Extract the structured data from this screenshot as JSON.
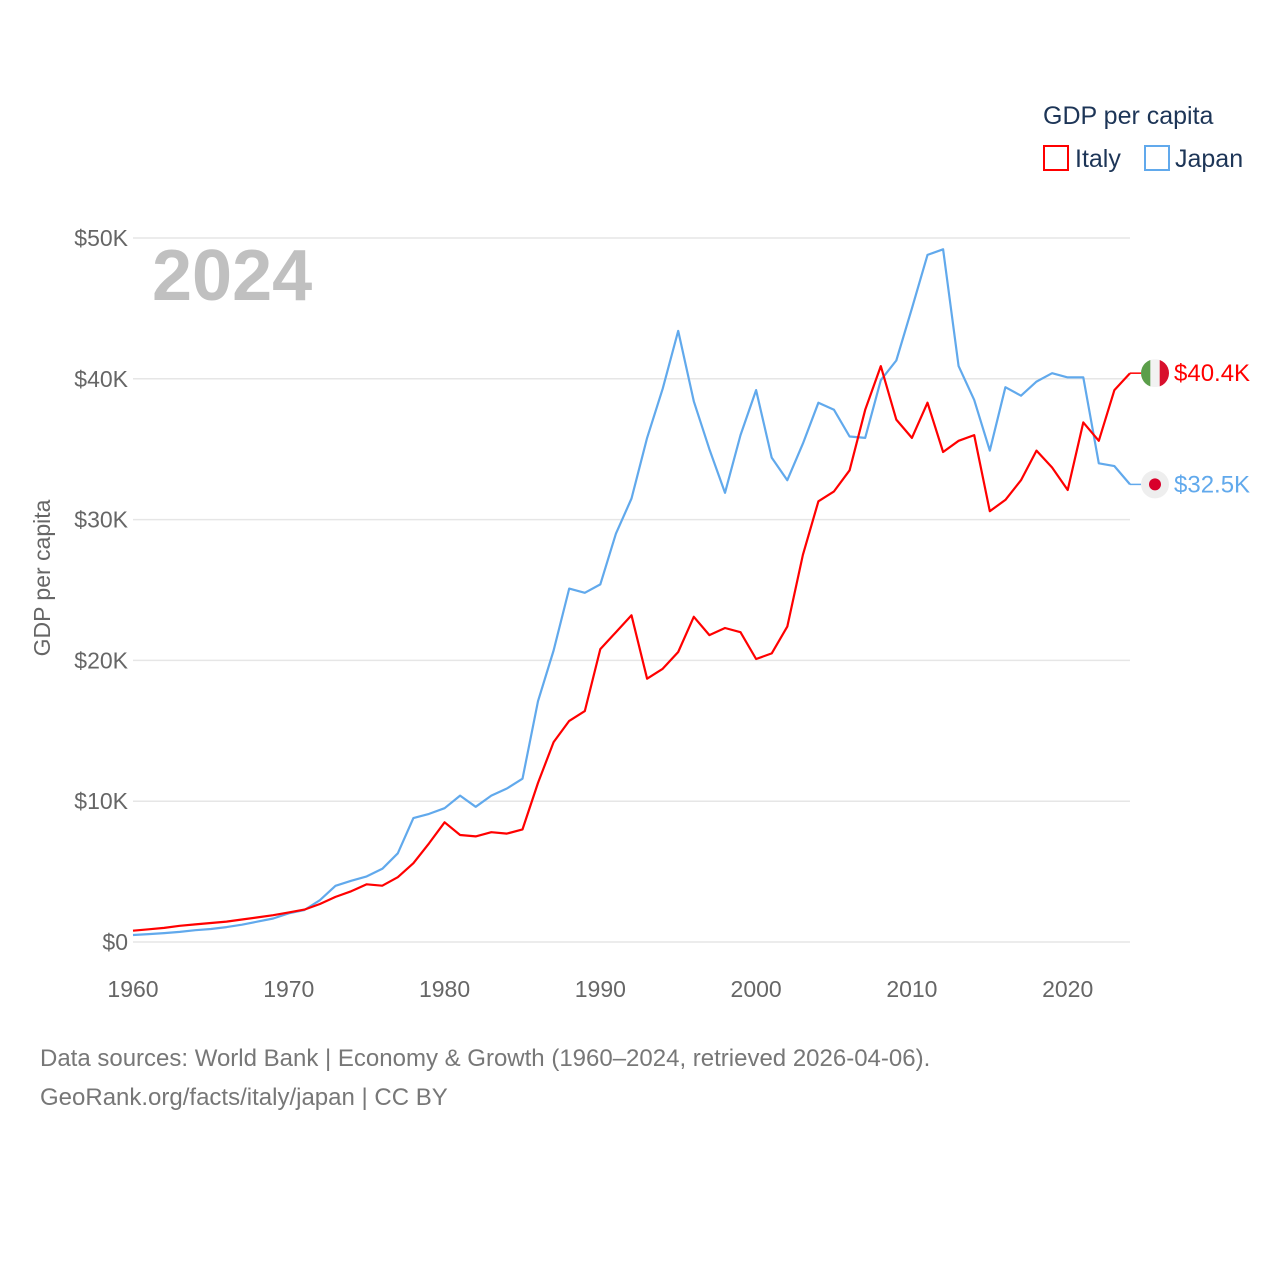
{
  "chart_data": {
    "type": "line",
    "title": "GDP per capita",
    "ylabel": "GDP per capita",
    "xlabel": "",
    "year_watermark": "2024",
    "ylim": [
      0,
      50000
    ],
    "xlim": [
      1960,
      2024
    ],
    "yticks": [
      {
        "v": 0,
        "label": "$0"
      },
      {
        "v": 10000,
        "label": "$10K"
      },
      {
        "v": 20000,
        "label": "$20K"
      },
      {
        "v": 30000,
        "label": "$30K"
      },
      {
        "v": 40000,
        "label": "$40K"
      },
      {
        "v": 50000,
        "label": "$50K"
      }
    ],
    "xticks": [
      {
        "v": 1960,
        "label": "1960"
      },
      {
        "v": 1970,
        "label": "1970"
      },
      {
        "v": 1980,
        "label": "1980"
      },
      {
        "v": 1990,
        "label": "1990"
      },
      {
        "v": 2000,
        "label": "2000"
      },
      {
        "v": 2010,
        "label": "2010"
      },
      {
        "v": 2020,
        "label": "2020"
      }
    ],
    "grid": true,
    "legend_placement": "top-right",
    "x_start": 1960,
    "series": [
      {
        "name": "Italy",
        "color": "#ff0000",
        "end_label": "$40.4K",
        "flag": "italy-flag",
        "values": [
          0.8,
          0.9,
          1.0,
          1.15,
          1.25,
          1.35,
          1.45,
          1.6,
          1.75,
          1.9,
          2.1,
          2.3,
          2.7,
          3.2,
          3.6,
          4.1,
          4.0,
          4.6,
          5.6,
          7.0,
          8.5,
          7.6,
          7.5,
          7.8,
          7.7,
          8.0,
          11.3,
          14.2,
          15.7,
          16.4,
          20.8,
          22.0,
          23.2,
          18.7,
          19.4,
          20.6,
          23.1,
          21.8,
          22.3,
          22.0,
          20.1,
          20.5,
          22.4,
          27.5,
          31.3,
          32.0,
          33.5,
          37.8,
          40.9,
          37.1,
          35.8,
          38.3,
          34.8,
          35.6,
          36.0,
          30.6,
          31.4,
          32.8,
          34.9,
          33.7,
          32.1,
          36.9,
          35.6,
          39.2,
          40.4
        ]
      },
      {
        "name": "Japan",
        "color": "#61a9ec",
        "end_label": "$32.5K",
        "flag": "japan-flag",
        "values": [
          0.5,
          0.56,
          0.63,
          0.72,
          0.84,
          0.92,
          1.06,
          1.23,
          1.45,
          1.67,
          2.04,
          2.27,
          2.97,
          3.99,
          4.35,
          4.66,
          5.2,
          6.3,
          8.8,
          9.1,
          9.5,
          10.4,
          9.6,
          10.4,
          10.9,
          11.6,
          17.1,
          20.7,
          25.1,
          24.8,
          25.4,
          29.0,
          31.5,
          35.8,
          39.3,
          43.4,
          38.4,
          35.0,
          31.9,
          36.0,
          39.2,
          34.4,
          32.8,
          35.4,
          38.3,
          37.8,
          35.9,
          35.8,
          39.9,
          41.3,
          45.0,
          48.8,
          49.2,
          40.9,
          38.5,
          34.9,
          39.4,
          38.8,
          39.8,
          40.4,
          40.1,
          40.1,
          34.0,
          33.8,
          32.5
        ]
      }
    ],
    "value_unit_note": "values in thousands of US$"
  },
  "footer": {
    "line1": "Data sources: World Bank | Economy & Growth (1960–2024, retrieved 2026-04-06).",
    "line2": "GeoRank.org/facts/italy/japan | CC BY"
  }
}
